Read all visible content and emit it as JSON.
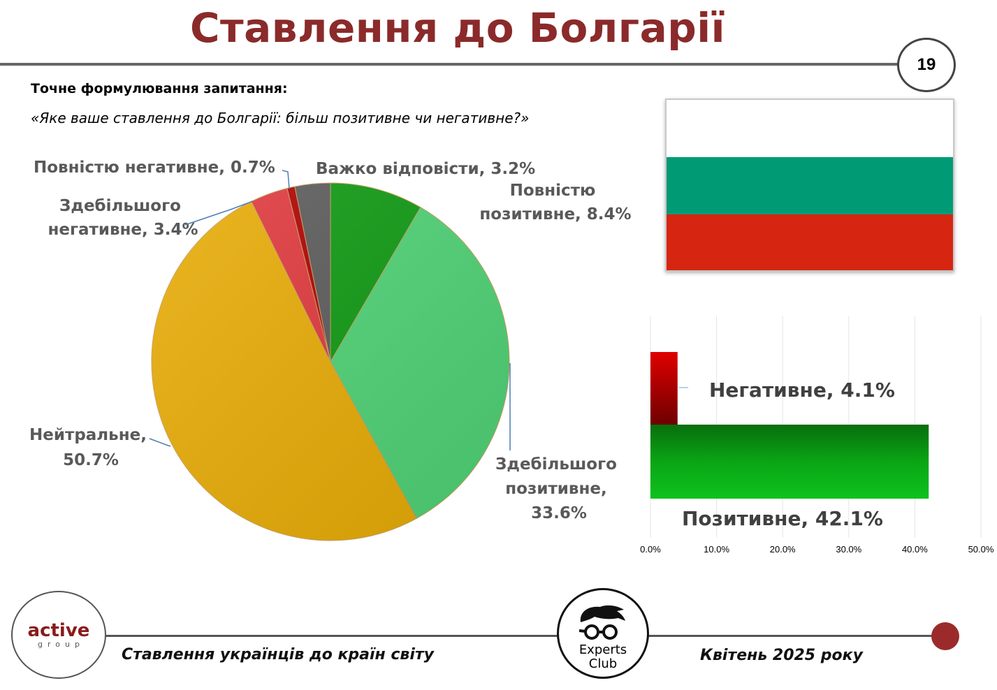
{
  "title": "Ставлення до Болгарії",
  "page_number": "19",
  "question": {
    "label": "Точне формулювання запитання:",
    "text": "«Яке ваше ставлення до Болгарії: більш позитивне чи негативне?»"
  },
  "flag": {
    "name": "Bulgaria",
    "colors": [
      "#ffffff",
      "#009b75",
      "#d62612"
    ]
  },
  "chart_data": [
    {
      "type": "pie",
      "slices": [
        {
          "label": "Повністю позитивне",
          "value": 8.4,
          "display": "Повністю позитивне, 8.4%",
          "color": "#0e9a12"
        },
        {
          "label": "Здебільшого позитивне",
          "value": 33.6,
          "display": "Здебільшого позитивне, 33.6%",
          "color": "#4fd376"
        },
        {
          "label": "Нейтральне",
          "value": 50.7,
          "display": "Нейтральне, 50.7%",
          "color": "#e8ac05"
        },
        {
          "label": "Здебільшого негативне",
          "value": 3.4,
          "display": "Здебільшого негативне, 3.4%",
          "color": "#e0383c"
        },
        {
          "label": "Повністю негативне",
          "value": 0.7,
          "display": "Повністю негативне, 0.7%",
          "color": "#b00000"
        },
        {
          "label": "Важко відповісти",
          "value": 3.2,
          "display": "Важко відповісти, 3.2%",
          "color": "#5b5b5b"
        }
      ]
    },
    {
      "type": "bar",
      "orientation": "horizontal",
      "categories": [
        "Негативне",
        "Позитивне"
      ],
      "values": [
        4.1,
        42.1
      ],
      "labels": [
        "Негативне, 4.1%",
        "Позитивне, 42.1%"
      ],
      "colors": [
        "#c00000",
        "#0fae1a"
      ],
      "xlim": [
        0,
        50
      ],
      "xticks": [
        "0.0%",
        "10.0%",
        "20.0%",
        "30.0%",
        "40.0%",
        "50.0%"
      ],
      "grid": true
    }
  ],
  "footer": {
    "left_text": "Ставлення українців до країн світу",
    "right_text": "Квітень 2025 року",
    "logo_active": {
      "main": "active",
      "sub": "group"
    },
    "logo_experts": {
      "line1": "Experts",
      "line2": "Club"
    }
  }
}
